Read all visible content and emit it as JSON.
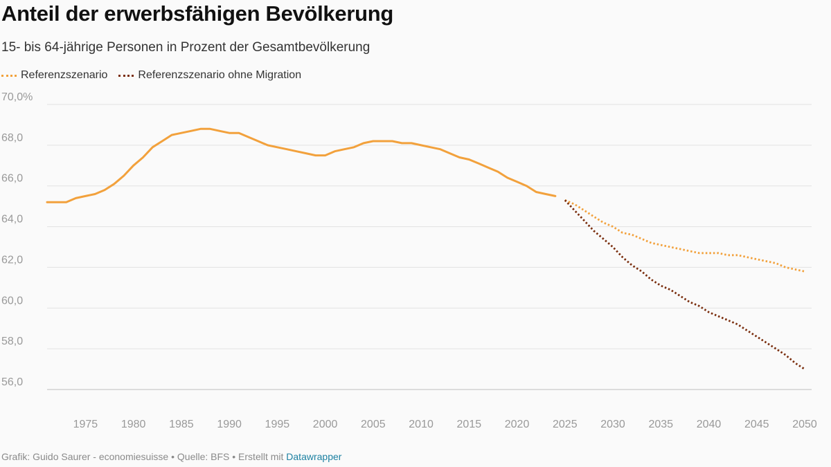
{
  "header": {
    "title": "Anteil der erwerbsfähigen Bevölkerung",
    "subtitle": "15- bis 64-jährige Personen in Prozent der Gesamtbevölkerung"
  },
  "legend": {
    "items": [
      {
        "label": "Referenzszenario",
        "color": "#f2a13c"
      },
      {
        "label": "Referenzszenario ohne Migration",
        "color": "#7a2e0e"
      }
    ]
  },
  "footer": {
    "text": "Grafik: Guido Saurer - economiesuisse • Quelle: BFS • Erstellt mit ",
    "link": "Datawrapper"
  },
  "chart_data": {
    "type": "line",
    "ylim": [
      56,
      70
    ],
    "xlim": [
      1971,
      2050
    ],
    "y_ticks": [
      {
        "value": 70,
        "label": "70,0%"
      },
      {
        "value": 68,
        "label": "68,0"
      },
      {
        "value": 66,
        "label": "66,0"
      },
      {
        "value": 64,
        "label": "64,0"
      },
      {
        "value": 62,
        "label": "62,0"
      },
      {
        "value": 60,
        "label": "60,0"
      },
      {
        "value": 58,
        "label": "58,0"
      },
      {
        "value": 56,
        "label": "56,0"
      }
    ],
    "x_ticks": [
      {
        "value": 1975,
        "label": "1975"
      },
      {
        "value": 1980,
        "label": "1980"
      },
      {
        "value": 1985,
        "label": "1985"
      },
      {
        "value": 1990,
        "label": "1990"
      },
      {
        "value": 1995,
        "label": "1995"
      },
      {
        "value": 2000,
        "label": "2000"
      },
      {
        "value": 2005,
        "label": "2005"
      },
      {
        "value": 2010,
        "label": "2010"
      },
      {
        "value": 2015,
        "label": "2015"
      },
      {
        "value": 2020,
        "label": "2020"
      },
      {
        "value": 2025,
        "label": "2025"
      },
      {
        "value": 2030,
        "label": "2030"
      },
      {
        "value": 2035,
        "label": "2035"
      },
      {
        "value": 2040,
        "label": "2040"
      },
      {
        "value": 2045,
        "label": "2045"
      },
      {
        "value": 2050,
        "label": "2050"
      }
    ],
    "grid": true,
    "series": [
      {
        "color": "#f2a13c",
        "style": "solid",
        "x": [
          1971,
          1972,
          1973,
          1974,
          1975,
          1976,
          1977,
          1978,
          1979,
          1980,
          1981,
          1982,
          1983,
          1984,
          1985,
          1986,
          1987,
          1988,
          1989,
          1990,
          1991,
          1992,
          1993,
          1994,
          1995,
          1996,
          1997,
          1998,
          1999,
          2000,
          2001,
          2002,
          2003,
          2004,
          2005,
          2006,
          2007,
          2008,
          2009,
          2010,
          2011,
          2012,
          2013,
          2014,
          2015,
          2016,
          2017,
          2018,
          2019,
          2020,
          2021,
          2022,
          2023,
          2024
        ],
        "y": [
          65.2,
          65.2,
          65.2,
          65.4,
          65.5,
          65.6,
          65.8,
          66.1,
          66.5,
          67.0,
          67.4,
          67.9,
          68.2,
          68.5,
          68.6,
          68.7,
          68.8,
          68.8,
          68.7,
          68.6,
          68.6,
          68.4,
          68.2,
          68.0,
          67.9,
          67.8,
          67.7,
          67.6,
          67.5,
          67.5,
          67.7,
          67.8,
          67.9,
          68.1,
          68.2,
          68.2,
          68.2,
          68.1,
          68.1,
          68.0,
          67.9,
          67.8,
          67.6,
          67.4,
          67.3,
          67.1,
          66.9,
          66.7,
          66.4,
          66.2,
          66.0,
          65.7,
          65.6,
          65.5
        ]
      },
      {
        "name": "Referenzszenario",
        "color": "#f2a13c",
        "style": "dotted",
        "x": [
          2025,
          2026,
          2027,
          2028,
          2029,
          2030,
          2031,
          2032,
          2033,
          2034,
          2035,
          2036,
          2037,
          2038,
          2039,
          2040,
          2041,
          2042,
          2043,
          2044,
          2045,
          2046,
          2047,
          2048,
          2049,
          2050
        ],
        "y": [
          65.3,
          65.1,
          64.8,
          64.5,
          64.2,
          64.0,
          63.7,
          63.6,
          63.4,
          63.2,
          63.1,
          63.0,
          62.9,
          62.8,
          62.7,
          62.7,
          62.7,
          62.6,
          62.6,
          62.5,
          62.4,
          62.3,
          62.2,
          62.0,
          61.9,
          61.8
        ]
      },
      {
        "name": "Referenzszenario ohne Migration",
        "color": "#7a2e0e",
        "style": "dotted",
        "x": [
          2025,
          2026,
          2027,
          2028,
          2029,
          2030,
          2031,
          2032,
          2033,
          2034,
          2035,
          2036,
          2037,
          2038,
          2039,
          2040,
          2041,
          2042,
          2043,
          2044,
          2045,
          2046,
          2047,
          2048,
          2049,
          2050
        ],
        "y": [
          65.3,
          64.8,
          64.3,
          63.8,
          63.4,
          63.0,
          62.5,
          62.1,
          61.8,
          61.4,
          61.1,
          60.9,
          60.6,
          60.3,
          60.1,
          59.8,
          59.6,
          59.4,
          59.2,
          58.9,
          58.6,
          58.3,
          58.0,
          57.7,
          57.3,
          57.0
        ]
      }
    ]
  }
}
